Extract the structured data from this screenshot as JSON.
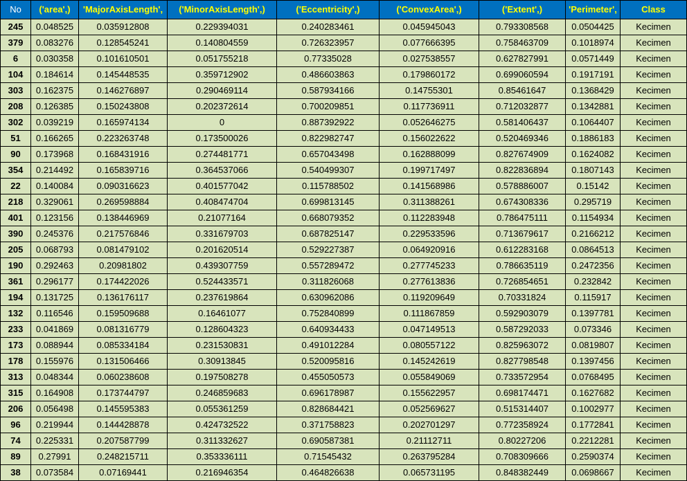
{
  "table": {
    "headers": [
      "No",
      "('area',)",
      "'MajorAxisLength',",
      "('MinorAxisLength',)",
      "('Eccentricity',)",
      "('ConvexArea',)",
      "('Extent',)",
      "'Perimeter',",
      "Class"
    ],
    "rows": [
      [
        "245",
        "0.048525",
        "0.035912808",
        "0.229394031",
        "0.240283461",
        "0.045945043",
        "0.793308568",
        "0.0504425",
        "Kecimen"
      ],
      [
        "379",
        "0.083276",
        "0.128545241",
        "0.140804559",
        "0.726323957",
        "0.077666395",
        "0.758463709",
        "0.1018974",
        "Kecimen"
      ],
      [
        "6",
        "0.030358",
        "0.101610501",
        "0.051755218",
        "0.77335028",
        "0.027538557",
        "0.627827991",
        "0.0571449",
        "Kecimen"
      ],
      [
        "104",
        "0.184614",
        "0.145448535",
        "0.359712902",
        "0.486603863",
        "0.179860172",
        "0.699060594",
        "0.1917191",
        "Kecimen"
      ],
      [
        "303",
        "0.162375",
        "0.146276897",
        "0.290469114",
        "0.587934166",
        "0.14755301",
        "0.85461647",
        "0.1368429",
        "Kecimen"
      ],
      [
        "208",
        "0.126385",
        "0.150243808",
        "0.202372614",
        "0.700209851",
        "0.117736911",
        "0.712032877",
        "0.1342881",
        "Kecimen"
      ],
      [
        "302",
        "0.039219",
        "0.165974134",
        "0",
        "0.887392922",
        "0.052646275",
        "0.581406437",
        "0.1064407",
        "Kecimen"
      ],
      [
        "51",
        "0.166265",
        "0.223263748",
        "0.173500026",
        "0.822982747",
        "0.156022622",
        "0.520469346",
        "0.1886183",
        "Kecimen"
      ],
      [
        "90",
        "0.173968",
        "0.168431916",
        "0.274481771",
        "0.657043498",
        "0.162888099",
        "0.827674909",
        "0.1624082",
        "Kecimen"
      ],
      [
        "354",
        "0.214492",
        "0.165839716",
        "0.364537066",
        "0.540499307",
        "0.199717497",
        "0.822836894",
        "0.1807143",
        "Kecimen"
      ],
      [
        "22",
        "0.140084",
        "0.090316623",
        "0.401577042",
        "0.115788502",
        "0.141568986",
        "0.578886007",
        "0.15142",
        "Kecimen"
      ],
      [
        "218",
        "0.329061",
        "0.269598884",
        "0.408474704",
        "0.699813145",
        "0.311388261",
        "0.674308336",
        "0.295719",
        "Kecimen"
      ],
      [
        "401",
        "0.123156",
        "0.138446969",
        "0.21077164",
        "0.668079352",
        "0.112283948",
        "0.786475111",
        "0.1154934",
        "Kecimen"
      ],
      [
        "390",
        "0.245376",
        "0.217576846",
        "0.331679703",
        "0.687825147",
        "0.229533596",
        "0.713679617",
        "0.2166212",
        "Kecimen"
      ],
      [
        "205",
        "0.068793",
        "0.081479102",
        "0.201620514",
        "0.529227387",
        "0.064920916",
        "0.612283168",
        "0.0864513",
        "Kecimen"
      ],
      [
        "190",
        "0.292463",
        "0.20981802",
        "0.439307759",
        "0.557289472",
        "0.277745233",
        "0.786635119",
        "0.2472356",
        "Kecimen"
      ],
      [
        "361",
        "0.296177",
        "0.174422026",
        "0.524433571",
        "0.311826068",
        "0.277613836",
        "0.726854651",
        "0.232842",
        "Kecimen"
      ],
      [
        "194",
        "0.131725",
        "0.136176117",
        "0.237619864",
        "0.630962086",
        "0.119209649",
        "0.70331824",
        "0.115917",
        "Kecimen"
      ],
      [
        "132",
        "0.116546",
        "0.159509688",
        "0.16461077",
        "0.752840899",
        "0.111867859",
        "0.592903079",
        "0.1397781",
        "Kecimen"
      ],
      [
        "233",
        "0.041869",
        "0.081316779",
        "0.128604323",
        "0.640934433",
        "0.047149513",
        "0.587292033",
        "0.073346",
        "Kecimen"
      ],
      [
        "173",
        "0.088944",
        "0.085334184",
        "0.231530831",
        "0.491012284",
        "0.080557122",
        "0.825963072",
        "0.0819807",
        "Kecimen"
      ],
      [
        "178",
        "0.155976",
        "0.131506466",
        "0.30913845",
        "0.520095816",
        "0.145242619",
        "0.827798548",
        "0.1397456",
        "Kecimen"
      ],
      [
        "313",
        "0.048344",
        "0.060238608",
        "0.197508278",
        "0.455050573",
        "0.055849069",
        "0.733572954",
        "0.0768495",
        "Kecimen"
      ],
      [
        "315",
        "0.164908",
        "0.173744797",
        "0.246859683",
        "0.696178987",
        "0.155622957",
        "0.698174471",
        "0.1627682",
        "Kecimen"
      ],
      [
        "206",
        "0.056498",
        "0.145595383",
        "0.055361259",
        "0.828684421",
        "0.052569627",
        "0.515314407",
        "0.1002977",
        "Kecimen"
      ],
      [
        "96",
        "0.219944",
        "0.144428878",
        "0.424732522",
        "0.371758823",
        "0.202701297",
        "0.772358924",
        "0.1772841",
        "Kecimen"
      ],
      [
        "74",
        "0.225331",
        "0.207587799",
        "0.311332627",
        "0.690587381",
        "0.21112711",
        "0.80227206",
        "0.2212281",
        "Kecimen"
      ],
      [
        "89",
        "0.27991",
        "0.248215711",
        "0.353336111",
        "0.71545432",
        "0.263795284",
        "0.708309666",
        "0.2590374",
        "Kecimen"
      ],
      [
        "38",
        "0.073584",
        "0.07169441",
        "0.216946354",
        "0.464826638",
        "0.065731195",
        "0.848382449",
        "0.0698667",
        "Kecimen"
      ]
    ]
  },
  "colors": {
    "header_bg": "#0070c0",
    "header_text": "#ffff00",
    "cell_bg": "#d8e4bc"
  }
}
